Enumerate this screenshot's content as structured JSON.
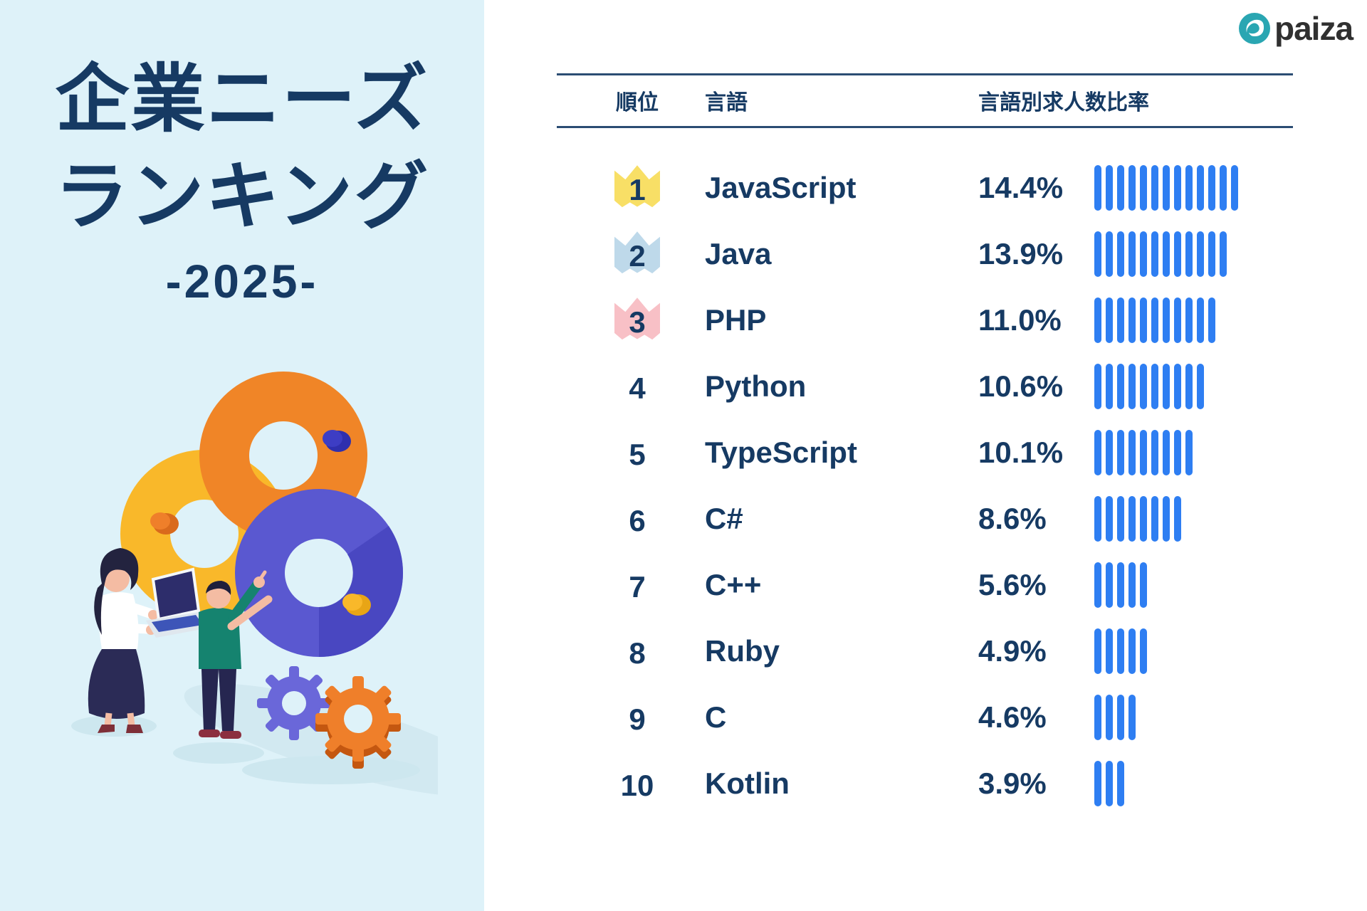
{
  "colors": {
    "panel_bg": "#def2f9",
    "navy": "#163a63",
    "rule": "#2b4d73",
    "bar_blue": "#2e7ef2",
    "crown_gold": "#f8df66",
    "crown_silver": "#bed9ea",
    "crown_bronze": "#f8c0c6",
    "logo_teal": "#2aa6b2"
  },
  "brand": {
    "name": "paiza"
  },
  "title": {
    "line1": "企業ニーズ",
    "line2": "ランキング",
    "year": "-2025-"
  },
  "table": {
    "headers": {
      "rank": "順位",
      "language": "言語",
      "ratio": "言語別求人数比率"
    },
    "rows": [
      {
        "rank": "1",
        "language": "JavaScript",
        "ratio": "14.4%",
        "bar_segments": 13,
        "crown": "gold"
      },
      {
        "rank": "2",
        "language": "Java",
        "ratio": "13.9%",
        "bar_segments": 12,
        "crown": "silver"
      },
      {
        "rank": "3",
        "language": "PHP",
        "ratio": "11.0%",
        "bar_segments": 11,
        "crown": "bronze"
      },
      {
        "rank": "4",
        "language": "Python",
        "ratio": "10.6%",
        "bar_segments": 10,
        "crown": null
      },
      {
        "rank": "5",
        "language": "TypeScript",
        "ratio": "10.1%",
        "bar_segments": 9,
        "crown": null
      },
      {
        "rank": "6",
        "language": "C#",
        "ratio": "8.6%",
        "bar_segments": 8,
        "crown": null
      },
      {
        "rank": "7",
        "language": "C++",
        "ratio": "5.6%",
        "bar_segments": 5,
        "crown": null
      },
      {
        "rank": "8",
        "language": "Ruby",
        "ratio": "4.9%",
        "bar_segments": 5,
        "crown": null
      },
      {
        "rank": "9",
        "language": "C",
        "ratio": "4.6%",
        "bar_segments": 4,
        "crown": null
      },
      {
        "rank": "10",
        "language": "Kotlin",
        "ratio": "3.9%",
        "bar_segments": 3,
        "crown": null
      }
    ]
  },
  "chart_data": {
    "type": "bar",
    "title": "企業ニーズランキング -2025-",
    "categories": [
      "JavaScript",
      "Java",
      "PHP",
      "Python",
      "TypeScript",
      "C#",
      "C++",
      "Ruby",
      "C",
      "Kotlin"
    ],
    "values": [
      14.4,
      13.9,
      11.0,
      10.6,
      10.1,
      8.6,
      5.6,
      4.9,
      4.6,
      3.9
    ],
    "value_labels": [
      "14.4%",
      "13.9%",
      "11.0%",
      "10.6%",
      "10.1%",
      "8.6%",
      "5.6%",
      "4.9%",
      "4.6%",
      "3.9%"
    ],
    "bar_segment_counts": [
      13,
      12,
      11,
      10,
      9,
      8,
      5,
      5,
      4,
      3
    ],
    "xlabel": "言語別求人数比率",
    "ylabel": "",
    "orientation": "horizontal",
    "legend": false,
    "grid": false
  }
}
